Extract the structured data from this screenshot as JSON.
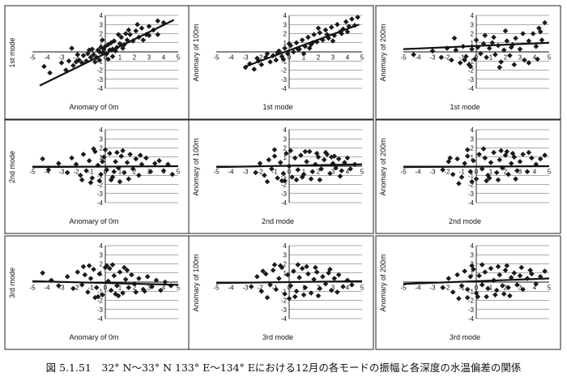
{
  "caption": "図 5.1.51　32° N～33° N 133° E～134° Eにおける12月の各モードの振幅と各深度の水温偏差の関係",
  "style": {
    "marker_color": "#1a1a1a",
    "line_color": "#111111",
    "frame_color": "#222222"
  },
  "chart_data": [
    {
      "type": "scatter",
      "xlabel": "Anomary of 0m",
      "ylabel": "1st mode",
      "xlim": [
        -5,
        5
      ],
      "ylim": [
        -4,
        4
      ],
      "xticks": [
        "-5",
        "-4",
        "-3",
        "-2",
        "-1",
        "0",
        "1",
        "2",
        "3",
        "4",
        "5"
      ],
      "yticks": [
        "4",
        "3",
        "2",
        "1",
        "-1",
        "-2",
        "-3",
        "-4"
      ],
      "trendline": {
        "x": [
          -4.5,
          4.7
        ],
        "y": [
          -3.7,
          3.5
        ]
      },
      "x": [
        -4.2,
        -3.8,
        -3.0,
        -2.7,
        -2.5,
        -2.2,
        -2.0,
        -1.8,
        -1.6,
        -1.5,
        -1.3,
        -1.2,
        -1.0,
        -0.9,
        -0.8,
        -0.6,
        -0.5,
        -0.4,
        -0.3,
        -0.2,
        -0.1,
        0.0,
        0.1,
        0.2,
        0.3,
        0.4,
        0.5,
        0.6,
        0.8,
        1.0,
        1.1,
        1.3,
        1.5,
        1.7,
        1.9,
        2.1,
        2.3,
        2.5,
        2.8,
        3.0,
        3.3,
        3.6,
        4.0,
        -1.1,
        -0.7,
        0.2,
        0.7,
        1.2,
        -0.2,
        0.9,
        2.6,
        -1.9,
        1.6,
        3.0,
        0.5,
        -0.4,
        1.4,
        2.2,
        -2.3,
        3.6
      ],
      "y": [
        -1.6,
        -2.3,
        -1.2,
        -2.0,
        -1.0,
        -1.5,
        -1.1,
        -0.9,
        -1.2,
        -0.4,
        -1.0,
        -0.2,
        -0.6,
        0.3,
        -0.3,
        -0.6,
        0.2,
        -0.9,
        0.5,
        -0.1,
        0.3,
        0.6,
        -0.2,
        0.8,
        0.2,
        1.0,
        0.3,
        1.2,
        0.5,
        0.9,
        1.6,
        0.8,
        1.3,
        1.9,
        1.2,
        2.3,
        1.6,
        2.6,
        1.9,
        2.8,
        2.4,
        3.4,
        3.2,
        0.2,
        -1.1,
        -0.8,
        0.1,
        0.4,
        1.3,
        1.9,
        1.3,
        -0.3,
        2.4,
        1.8,
        -0.5,
        0.0,
        2.0,
        3.0,
        0.4,
        1.9
      ]
    },
    {
      "type": "scatter",
      "xlabel": "1st mode",
      "ylabel": "Anomary of 100m",
      "xlim": [
        -5,
        5
      ],
      "ylim": [
        -4,
        4
      ],
      "xticks": [
        "-5",
        "-4",
        "-3",
        "-2",
        "-1",
        "0",
        "1",
        "2",
        "3",
        "4",
        "5"
      ],
      "yticks": [
        "4",
        "3",
        "2",
        "1",
        "-1",
        "-2",
        "-3",
        "-4"
      ],
      "trendline": {
        "x": [
          -3.0,
          4.8
        ],
        "y": [
          -1.6,
          3.0
        ]
      },
      "x": [
        -3.0,
        -2.7,
        -2.4,
        -2.1,
        -1.9,
        -1.6,
        -1.3,
        -1.1,
        -0.9,
        -0.7,
        -0.5,
        -0.3,
        -0.1,
        0.1,
        0.3,
        0.5,
        0.7,
        0.9,
        1.1,
        1.3,
        1.5,
        1.7,
        1.9,
        2.1,
        2.3,
        2.5,
        2.7,
        2.9,
        3.1,
        3.3,
        3.5,
        3.7,
        3.9,
        4.1,
        4.3,
        4.5,
        4.7,
        -1.5,
        -0.4,
        0.6,
        1.6,
        2.6,
        3.6,
        -2.2,
        0.0,
        1.0,
        2.0,
        3.0,
        4.0,
        -0.8,
        1.4
      ],
      "y": [
        -1.7,
        -1.3,
        -1.9,
        -1.0,
        -1.4,
        -0.6,
        -1.1,
        -0.4,
        -0.9,
        0.1,
        -0.5,
        0.4,
        -0.2,
        0.7,
        0.0,
        1.0,
        0.3,
        1.3,
        0.6,
        1.6,
        0.8,
        1.9,
        1.1,
        2.1,
        1.3,
        2.4,
        1.5,
        2.7,
        1.8,
        3.0,
        2.2,
        2.5,
        3.3,
        2.8,
        3.6,
        2.9,
        3.8,
        -0.2,
        -0.8,
        0.3,
        1.0,
        1.9,
        2.0,
        -0.7,
        0.9,
        -0.2,
        2.6,
        1.2,
        2.2,
        -0.1,
        0.4
      ]
    },
    {
      "type": "scatter",
      "xlabel": "1st mode",
      "ylabel": "Anomary of 200m",
      "xlim": [
        -5,
        5
      ],
      "ylim": [
        -4,
        4
      ],
      "xticks": [
        "-5",
        "-4",
        "-3",
        "-2",
        "-1",
        "0",
        "1",
        "2",
        "3",
        "4",
        "5"
      ],
      "yticks": [
        "4",
        "3",
        "2",
        "1",
        "-1",
        "-2",
        "-3",
        "-4"
      ],
      "trendline": {
        "x": [
          -5.0,
          5.0
        ],
        "y": [
          0.3,
          1.0
        ]
      },
      "x": [
        -4.3,
        -3.0,
        -2.4,
        -2.0,
        -1.7,
        -1.4,
        -1.1,
        -0.9,
        -0.7,
        -0.5,
        -0.3,
        -0.1,
        0.1,
        0.3,
        0.5,
        0.7,
        0.9,
        1.1,
        1.3,
        1.5,
        1.7,
        1.9,
        2.1,
        2.3,
        2.5,
        2.7,
        3.0,
        3.3,
        3.6,
        3.9,
        4.1,
        4.3,
        4.5,
        4.7,
        -1.5,
        -0.4,
        0.6,
        1.6,
        2.6,
        3.6,
        4.2,
        -0.8,
        1.2,
        2.0,
        3.2,
        0.0,
        2.4,
        4.4
      ],
      "y": [
        -0.3,
        0.1,
        -0.6,
        0.4,
        -0.9,
        0.2,
        -1.2,
        0.6,
        -0.5,
        -1.4,
        0.3,
        -0.8,
        0.5,
        -0.2,
        0.9,
        -0.6,
        0.4,
        1.0,
        -0.3,
        0.7,
        -1.1,
        0.2,
        1.2,
        -0.4,
        0.8,
        1.5,
        0.3,
        -0.9,
        1.2,
        2.0,
        0.6,
        2.6,
        1.3,
        3.2,
        1.5,
        -1.6,
        1.8,
        -1.7,
        -1.4,
        -1.2,
        -0.8,
        -0.9,
        1.6,
        2.3,
        2.0,
        1.3,
        0.5,
        2.2
      ]
    },
    {
      "type": "scatter",
      "xlabel": "Anomary of 0m",
      "ylabel": "2nd mode",
      "xlim": [
        -5,
        5
      ],
      "ylim": [
        -4,
        4
      ],
      "xticks": [
        "-5",
        "-4",
        "-3",
        "-2",
        "-1",
        "0",
        "1",
        "2",
        "3",
        "4",
        "5"
      ],
      "yticks": [
        "4",
        "3",
        "2",
        "1",
        "-1",
        "-2",
        "-3",
        "-4"
      ],
      "trendline": {
        "x": [
          -5.0,
          5.0
        ],
        "y": [
          -0.1,
          0.0
        ]
      },
      "x": [
        -4.3,
        -3.9,
        -3.2,
        -2.6,
        -2.3,
        -2.0,
        -1.7,
        -1.5,
        -1.3,
        -1.1,
        -0.9,
        -0.7,
        -0.5,
        -0.3,
        -0.1,
        0.1,
        0.3,
        0.5,
        0.7,
        0.9,
        1.1,
        1.3,
        1.5,
        1.7,
        1.9,
        2.1,
        2.3,
        2.5,
        2.8,
        3.1,
        3.4,
        3.7,
        4.0,
        4.3,
        4.6,
        -1.0,
        -0.4,
        0.4,
        1.0,
        -0.8,
        0.0,
        0.8,
        1.6,
        2.4,
        -1.6,
        -0.2,
        0.6,
        1.2
      ],
      "y": [
        0.8,
        -0.4,
        0.3,
        -0.7,
        0.9,
        0.2,
        -1.0,
        1.3,
        -0.5,
        0.6,
        -1.3,
        1.6,
        0.1,
        -0.9,
        1.0,
        -0.4,
        1.4,
        -1.2,
        0.5,
        -0.2,
        1.1,
        -0.7,
        0.4,
        1.3,
        -0.3,
        0.8,
        -1.0,
        0.2,
        0.9,
        -0.6,
        0.3,
        0.6,
        -0.5,
        0.2,
        -0.9,
        -1.8,
        -1.6,
        -1.5,
        -1.7,
        1.9,
        1.8,
        1.5,
        -1.4,
        1.2,
        -1.5,
        0.5,
        -0.6,
        1.7
      ]
    },
    {
      "type": "scatter",
      "xlabel": "2nd mode",
      "ylabel": "Anomary of 100m",
      "xlim": [
        -5,
        5
      ],
      "ylim": [
        -4,
        4
      ],
      "xticks": [
        "-5",
        "-4",
        "-3",
        "-2",
        "-1",
        "0",
        "1",
        "2",
        "3",
        "4",
        "5"
      ],
      "yticks": [
        "4",
        "3",
        "2",
        "1",
        "-1",
        "-2",
        "-3",
        "-4"
      ],
      "trendline": {
        "x": [
          -5.0,
          5.0
        ],
        "y": [
          -0.1,
          0.2
        ]
      },
      "x": [
        -2.3,
        -2.0,
        -1.7,
        -1.4,
        -1.2,
        -1.0,
        -0.8,
        -0.6,
        -0.4,
        -0.2,
        0.0,
        0.2,
        0.4,
        0.6,
        0.8,
        1.0,
        1.2,
        1.4,
        1.6,
        1.8,
        2.0,
        2.2,
        2.4,
        2.6,
        2.8,
        3.0,
        3.2,
        3.4,
        3.6,
        3.8,
        4.0,
        4.2,
        4.5,
        -1.5,
        -0.5,
        0.5,
        1.5,
        2.5,
        3.5,
        -1.0,
        0.1,
        1.1,
        2.1,
        3.1,
        -0.3,
        0.9,
        1.9,
        2.9
      ],
      "y": [
        -0.7,
        0.3,
        -1.0,
        0.7,
        -0.3,
        1.1,
        -1.3,
        0.4,
        -0.8,
        1.4,
        0.0,
        -1.2,
        0.9,
        -0.4,
        1.2,
        -0.9,
        0.5,
        1.6,
        -0.6,
        0.2,
        1.0,
        -0.3,
        0.7,
        1.3,
        -0.8,
        0.3,
        -0.2,
        0.8,
        -0.5,
        0.4,
        0.9,
        -0.3,
        0.2,
        -1.7,
        -1.6,
        -1.5,
        -1.4,
        1.5,
        -1.1,
        1.8,
        1.7,
        1.6,
        -1.5,
        1.1,
        -1.6,
        -1.2,
        1.4,
        1.0
      ]
    },
    {
      "type": "scatter",
      "xlabel": "2nd mode",
      "ylabel": "Anomary of 200m",
      "xlim": [
        -5,
        5
      ],
      "ylim": [
        -4,
        4
      ],
      "xticks": [
        "-5",
        "-4",
        "-3",
        "-2",
        "-1",
        "0",
        "1",
        "2",
        "3",
        "4",
        "5"
      ],
      "yticks": [
        "4",
        "3",
        "2",
        "1",
        "-1",
        "-2",
        "-3",
        "-4"
      ],
      "trendline": {
        "x": [
          -5.0,
          5.0
        ],
        "y": [
          -0.1,
          0.0
        ]
      },
      "x": [
        -2.3,
        -1.9,
        -1.6,
        -1.3,
        -1.0,
        -0.8,
        -0.6,
        -0.4,
        -0.2,
        0.0,
        0.2,
        0.4,
        0.6,
        0.8,
        1.0,
        1.2,
        1.4,
        1.6,
        1.8,
        2.0,
        2.2,
        2.4,
        2.6,
        2.8,
        3.0,
        3.2,
        3.5,
        3.8,
        4.1,
        4.4,
        4.7,
        -1.2,
        -0.3,
        0.7,
        1.7,
        2.7,
        3.6,
        -0.6,
        0.5,
        1.5,
        2.5,
        -1.8,
        0.9,
        2.1
      ],
      "y": [
        -0.4,
        0.5,
        -0.9,
        0.8,
        -1.2,
        0.3,
        1.1,
        -0.6,
        0.6,
        -1.4,
        1.3,
        -0.3,
        0.9,
        -1.0,
        0.4,
        1.5,
        -0.7,
        0.7,
        -0.2,
        1.2,
        -0.9,
        0.3,
        1.0,
        -0.5,
        0.5,
        1.3,
        -0.6,
        0.9,
        0.2,
        0.8,
        1.2,
        -1.9,
        -1.7,
        -1.6,
        1.7,
        -1.4,
        1.5,
        1.8,
        1.9,
        -1.5,
        1.4,
        0.9,
        -1.3,
        1.6
      ]
    },
    {
      "type": "scatter",
      "xlabel": "Anomary of 0m",
      "ylabel": "3rd mode",
      "xlim": [
        -5,
        5
      ],
      "ylim": [
        -4,
        4
      ],
      "xticks": [
        "-5",
        "-4",
        "-3",
        "-2",
        "-1",
        "0",
        "1",
        "2",
        "3",
        "4",
        "5"
      ],
      "yticks": [
        "4",
        "3",
        "2",
        "1",
        "-1",
        "-2",
        "-3",
        "-4"
      ],
      "trendline": {
        "x": [
          -5.0,
          5.0
        ],
        "y": [
          0.1,
          -0.3
        ]
      },
      "x": [
        -4.3,
        -3.7,
        -3.2,
        -2.6,
        -2.2,
        -1.9,
        -1.6,
        -1.4,
        -1.2,
        -1.0,
        -0.8,
        -0.6,
        -0.4,
        -0.2,
        0.0,
        0.2,
        0.4,
        0.6,
        0.8,
        1.0,
        1.2,
        1.4,
        1.6,
        1.8,
        2.0,
        2.3,
        2.6,
        2.9,
        3.2,
        3.5,
        3.8,
        4.1,
        4.5,
        -1.1,
        -0.5,
        0.3,
        0.9,
        1.5,
        2.1,
        -0.7,
        0.1,
        0.7,
        1.3,
        2.7,
        -1.5,
        0.5
      ],
      "y": [
        1.0,
        0.2,
        -0.4,
        0.6,
        -0.7,
        1.1,
        -0.3,
        0.8,
        -1.1,
        0.4,
        1.4,
        -0.6,
        0.9,
        -1.4,
        1.6,
        0.1,
        -0.9,
        0.7,
        -0.4,
        1.1,
        -1.2,
        0.3,
        -0.6,
        0.8,
        -0.2,
        0.4,
        -0.8,
        0.6,
        -0.5,
        0.2,
        -0.9,
        0.0,
        -0.4,
        1.8,
        -1.6,
        1.5,
        -1.5,
        1.3,
        -1.1,
        -1.7,
        1.8,
        -1.3,
        1.6,
        -1.0,
        1.7,
        1.9
      ]
    },
    {
      "type": "scatter",
      "xlabel": "3rd mode",
      "ylabel": "Anomary of 100m",
      "xlim": [
        -5,
        5
      ],
      "ylim": [
        -4,
        4
      ],
      "xticks": [
        "-5",
        "-4",
        "-3",
        "-2",
        "-1",
        "0",
        "1",
        "2",
        "3",
        "4",
        "5"
      ],
      "yticks": [
        "4",
        "3",
        "2",
        "1",
        "-1",
        "-2",
        "-3",
        "-4"
      ],
      "trendline": {
        "x": [
          -5.0,
          5.0
        ],
        "y": [
          -0.1,
          0.1
        ]
      },
      "x": [
        -2.6,
        -2.2,
        -1.9,
        -1.6,
        -1.3,
        -1.1,
        -0.9,
        -0.7,
        -0.5,
        -0.3,
        -0.1,
        0.1,
        0.3,
        0.5,
        0.7,
        0.9,
        1.1,
        1.3,
        1.5,
        1.7,
        1.9,
        2.1,
        2.3,
        2.5,
        2.7,
        2.9,
        3.1,
        3.4,
        3.7,
        4.0,
        4.3,
        -1.5,
        -0.6,
        0.4,
        1.2,
        2.0,
        2.8,
        -1.0,
        0.0,
        1.0,
        1.8,
        3.3,
        -1.8,
        0.6
      ],
      "y": [
        -0.5,
        0.6,
        -1.0,
        0.9,
        -0.3,
        1.3,
        -0.8,
        0.4,
        1.6,
        -1.3,
        0.8,
        -0.4,
        1.2,
        -1.0,
        0.5,
        1.5,
        -0.6,
        0.9,
        -1.2,
        0.3,
        1.1,
        -0.7,
        0.6,
        -0.2,
        1.0,
        -0.9,
        0.4,
        0.8,
        -0.5,
        0.2,
        -0.3,
        -1.7,
        1.8,
        -1.6,
        1.7,
        -1.5,
        1.4,
        1.9,
        -1.8,
        -1.4,
        1.6,
        -1.1,
        1.2,
        1.9
      ]
    },
    {
      "type": "scatter",
      "xlabel": "3rd mode",
      "ylabel": "Anomary of 200m",
      "xlim": [
        -5,
        5
      ],
      "ylim": [
        -4,
        4
      ],
      "xticks": [
        "-5",
        "-4",
        "-3",
        "-2",
        "-1",
        "0",
        "1",
        "2",
        "3",
        "4",
        "5"
      ],
      "yticks": [
        "4",
        "3",
        "2",
        "1",
        "-1",
        "-2",
        "-3",
        "-4"
      ],
      "trendline": {
        "x": [
          -5.0,
          5.0
        ],
        "y": [
          -0.2,
          0.4
        ]
      },
      "x": [
        -2.3,
        -1.9,
        -1.6,
        -1.3,
        -1.0,
        -0.8,
        -0.6,
        -0.4,
        -0.2,
        0.0,
        0.2,
        0.4,
        0.6,
        0.8,
        1.0,
        1.2,
        1.4,
        1.6,
        1.8,
        2.0,
        2.2,
        2.4,
        2.6,
        2.8,
        3.0,
        3.2,
        3.5,
        3.8,
        4.1,
        4.4,
        4.7,
        -1.2,
        -0.3,
        0.7,
        1.5,
        2.3,
        3.1,
        -0.6,
        0.4,
        1.3,
        2.1,
        3.7,
        0.1,
        1.9
      ],
      "y": [
        -0.6,
        0.4,
        -1.1,
        0.8,
        -0.4,
        1.2,
        -0.8,
        0.6,
        1.4,
        -1.2,
        0.7,
        -0.3,
        1.1,
        -0.7,
        1.5,
        0.2,
        -0.9,
        0.8,
        -0.4,
        1.3,
        -0.6,
        0.5,
        1.0,
        -0.3,
        0.7,
        -0.8,
        0.4,
        0.9,
        -0.2,
        0.6,
        1.2,
        -1.8,
        1.8,
        -1.6,
        1.7,
        -1.5,
        1.6,
        -1.7,
        1.9,
        -1.4,
        1.8,
        1.3,
        -1.6,
        -1.3
      ]
    }
  ]
}
